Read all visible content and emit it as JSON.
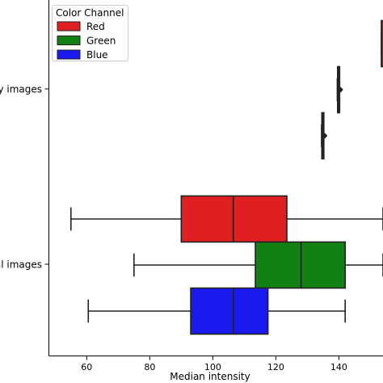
{
  "chart_data": {
    "type": "boxplot",
    "orientation": "horizontal",
    "xlabel": "Median intensity",
    "ylabel": "",
    "xlim": [
      48,
      154
    ],
    "x_ticks": [
      60,
      80,
      100,
      120,
      140
    ],
    "categories": [
      "...y images",
      "...al images"
    ],
    "legend": {
      "title": "Color Channel",
      "position": "top-left",
      "entries": [
        {
          "label": "Red",
          "color": "#e02020"
        },
        {
          "label": "Green",
          "color": "#138013"
        },
        {
          "label": "Blue",
          "color": "#1a1aee"
        }
      ]
    },
    "series": [
      {
        "name": "Red",
        "color": "#e02020",
        "boxes": [
          {
            "category": "...y images",
            "whisker_low": 153.5,
            "q1": 153.5,
            "median": 153.5,
            "q3": 154,
            "whisker_high": 154,
            "partially_visible": true
          },
          {
            "category": "...al images",
            "whisker_low": 55,
            "q1": 90,
            "median": 106.5,
            "q3": 123.5,
            "whisker_high": 154,
            "partially_visible": true
          }
        ]
      },
      {
        "name": "Green",
        "color": "#138013",
        "boxes": [
          {
            "category": "...y images",
            "whisker_low": 139.5,
            "q1": 139.6,
            "median": 139.8,
            "q3": 140,
            "whisker_high": 140,
            "outliers": [
              140.6
            ]
          },
          {
            "category": "...al images",
            "whisker_low": 75,
            "q1": 113.5,
            "median": 128,
            "q3": 142,
            "whisker_high": 154,
            "partially_visible": true
          }
        ]
      },
      {
        "name": "Blue",
        "color": "#1a1aee",
        "boxes": [
          {
            "category": "...y images",
            "whisker_low": 134.5,
            "q1": 134.6,
            "median": 134.8,
            "q3": 135,
            "whisker_high": 135,
            "outliers": [
              135.6
            ]
          },
          {
            "category": "...al images",
            "whisker_low": 60.5,
            "q1": 93,
            "median": 106.5,
            "q3": 117.5,
            "whisker_high": 142
          }
        ]
      }
    ],
    "category_labels_display": [
      "y images",
      "al images"
    ],
    "grid": false
  }
}
